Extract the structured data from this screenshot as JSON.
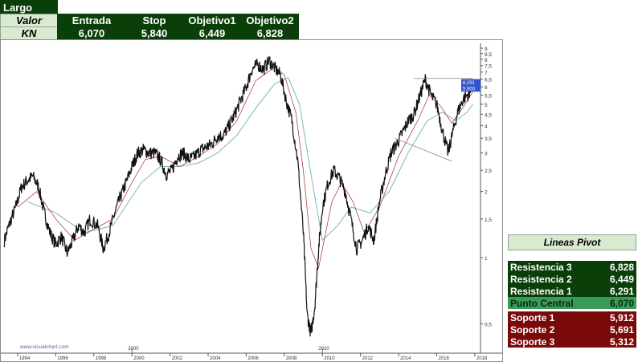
{
  "trade": {
    "direction": "Largo",
    "header": {
      "label": "Valor",
      "cols": [
        "Entrada",
        "Stop",
        "Objetivo1",
        "Objetivo2"
      ]
    },
    "row": {
      "ticker": "KN",
      "values": [
        "6,070",
        "5,840",
        "6,449",
        "6,828"
      ]
    }
  },
  "pivot": {
    "title": "Lineas Pivot",
    "rows": [
      {
        "label": "Resistencia 3",
        "value": "6,828",
        "color": "#0a3f0a"
      },
      {
        "label": "Resistencia 2",
        "value": "6,449",
        "color": "#0a3f0a"
      },
      {
        "label": "Resistencia 1",
        "value": "6,291",
        "color": "#0a3f0a"
      },
      {
        "label": "Punto Central",
        "value": "6,070",
        "color": "#3a9a5a"
      },
      {
        "label": "Soporte 1",
        "value": "5,912",
        "color": "#7a0a0a"
      },
      {
        "label": "Soporte 2",
        "value": "5,691",
        "color": "#7a0a0a"
      },
      {
        "label": "Soporte 3",
        "value": "5,312",
        "color": "#7a0a0a"
      }
    ]
  },
  "chart_data": {
    "type": "line",
    "scale": "log",
    "watermark": "www.visualchart.com",
    "ylim": [
      0.38,
      9
    ],
    "xlim": [
      1993.2,
      2018.3
    ],
    "y_ticks": [
      "9",
      "8,5",
      "8",
      "7,5",
      "7",
      "6,5",
      "6",
      "5,5",
      "5",
      "4,5",
      "4",
      "3,5",
      "3",
      "2,5",
      "2",
      "1,5",
      "1",
      "0,5"
    ],
    "y_tick_values": [
      9,
      8.5,
      8,
      7.5,
      7,
      6.5,
      6,
      5.5,
      5,
      4.5,
      4,
      3.5,
      3,
      2.5,
      2,
      1.5,
      1,
      0.5
    ],
    "x_ticks": [
      "1994",
      "1996",
      "1998",
      "2000",
      "2002",
      "2004",
      "2006",
      "2008",
      "2010",
      "2012",
      "2014",
      "2016",
      "2018"
    ],
    "x_tick_values": [
      1994,
      1996,
      1998,
      2000,
      2002,
      2004,
      2006,
      2008,
      2010,
      2012,
      2014,
      2016,
      2018
    ],
    "x_upper_labels": [
      {
        "text": "2000",
        "x": 2000
      },
      {
        "text": "2010",
        "x": 2010
      }
    ],
    "price_tags": [
      {
        "text": "6,291",
        "y": 6.29
      },
      {
        "text": "5,900",
        "y": 5.9
      }
    ],
    "series": [
      {
        "values": [
          [
            1993.3,
            1.2
          ],
          [
            1993.6,
            1.45
          ],
          [
            1993.9,
            1.7
          ],
          [
            1994.2,
            2.1
          ],
          [
            1994.5,
            2.25
          ],
          [
            1994.8,
            2.35
          ],
          [
            1995.1,
            2.1
          ],
          [
            1995.4,
            1.6
          ],
          [
            1995.7,
            1.3
          ],
          [
            1996.0,
            1.15
          ],
          [
            1996.3,
            1.25
          ],
          [
            1996.6,
            1.05
          ],
          [
            1996.9,
            1.2
          ],
          [
            1997.2,
            1.4
          ],
          [
            1997.5,
            1.3
          ],
          [
            1997.8,
            1.5
          ],
          [
            1998.2,
            1.4
          ],
          [
            1998.5,
            1.1
          ],
          [
            1998.8,
            1.3
          ],
          [
            1999.1,
            1.6
          ],
          [
            1999.4,
            1.9
          ],
          [
            1999.7,
            2.2
          ],
          [
            2000.0,
            2.6
          ],
          [
            2000.3,
            3.0
          ],
          [
            2000.6,
            3.1
          ],
          [
            2000.9,
            3.0
          ],
          [
            2001.2,
            3.0
          ],
          [
            2001.5,
            2.8
          ],
          [
            2001.8,
            2.4
          ],
          [
            2002.1,
            2.5
          ],
          [
            2002.4,
            2.9
          ],
          [
            2002.7,
            3.0
          ],
          [
            2003.0,
            2.8
          ],
          [
            2003.3,
            2.9
          ],
          [
            2003.6,
            3.1
          ],
          [
            2003.9,
            3.2
          ],
          [
            2004.2,
            3.3
          ],
          [
            2004.5,
            3.6
          ],
          [
            2004.8,
            3.6
          ],
          [
            2005.1,
            4.0
          ],
          [
            2005.4,
            4.5
          ],
          [
            2005.7,
            5.2
          ],
          [
            2006.0,
            6.0
          ],
          [
            2006.3,
            7.2
          ],
          [
            2006.6,
            7.6
          ],
          [
            2006.9,
            7.2
          ],
          [
            2007.2,
            7.9
          ],
          [
            2007.5,
            7.3
          ],
          [
            2007.8,
            6.8
          ],
          [
            2008.1,
            5.2
          ],
          [
            2008.4,
            4.2
          ],
          [
            2008.7,
            2.8
          ],
          [
            2009.0,
            1.3
          ],
          [
            2009.2,
            0.55
          ],
          [
            2009.4,
            0.45
          ],
          [
            2009.6,
            0.6
          ],
          [
            2009.8,
            1.1
          ],
          [
            2010.0,
            1.7
          ],
          [
            2010.3,
            2.2
          ],
          [
            2010.6,
            2.5
          ],
          [
            2010.9,
            2.3
          ],
          [
            2011.2,
            2.0
          ],
          [
            2011.5,
            1.5
          ],
          [
            2011.8,
            1.1
          ],
          [
            2012.1,
            1.2
          ],
          [
            2012.4,
            1.4
          ],
          [
            2012.7,
            1.2
          ],
          [
            2013.0,
            1.8
          ],
          [
            2013.3,
            2.4
          ],
          [
            2013.6,
            3.0
          ],
          [
            2013.9,
            3.3
          ],
          [
            2014.2,
            3.7
          ],
          [
            2014.5,
            4.2
          ],
          [
            2014.8,
            4.5
          ],
          [
            2015.1,
            5.4
          ],
          [
            2015.4,
            6.5
          ],
          [
            2015.7,
            5.5
          ],
          [
            2016.0,
            5.0
          ],
          [
            2016.3,
            3.8
          ],
          [
            2016.6,
            3.0
          ],
          [
            2016.8,
            3.6
          ],
          [
            2017.1,
            4.6
          ],
          [
            2017.4,
            5.3
          ],
          [
            2017.7,
            5.6
          ],
          [
            2017.8,
            6.1
          ],
          [
            2017.9,
            6.2
          ]
        ]
      }
    ],
    "ma_fast": [
      [
        1994.0,
        1.7
      ],
      [
        1995.0,
        2.0
      ],
      [
        1996.0,
        1.5
      ],
      [
        1997.0,
        1.2
      ],
      [
        1998.0,
        1.35
      ],
      [
        1999.0,
        1.5
      ],
      [
        2000.0,
        2.2
      ],
      [
        2000.7,
        2.8
      ],
      [
        2001.5,
        2.9
      ],
      [
        2002.5,
        2.6
      ],
      [
        2003.5,
        2.9
      ],
      [
        2004.5,
        3.3
      ],
      [
        2005.5,
        4.2
      ],
      [
        2006.5,
        6.4
      ],
      [
        2007.5,
        7.4
      ],
      [
        2008.0,
        6.8
      ],
      [
        2008.6,
        4.6
      ],
      [
        2009.0,
        2.5
      ],
      [
        2009.4,
        1.1
      ],
      [
        2009.8,
        0.9
      ],
      [
        2010.5,
        1.8
      ],
      [
        2011.0,
        2.2
      ],
      [
        2011.6,
        1.8
      ],
      [
        2012.2,
        1.3
      ],
      [
        2013.0,
        1.7
      ],
      [
        2014.0,
        2.9
      ],
      [
        2015.0,
        4.2
      ],
      [
        2015.6,
        5.5
      ],
      [
        2016.2,
        4.9
      ],
      [
        2016.8,
        4.1
      ],
      [
        2017.5,
        5.0
      ],
      [
        2017.9,
        5.7
      ]
    ],
    "ma_slow": [
      [
        1994.5,
        1.8
      ],
      [
        1996.0,
        1.6
      ],
      [
        1997.5,
        1.3
      ],
      [
        1999.0,
        1.4
      ],
      [
        2000.5,
        2.2
      ],
      [
        2001.5,
        2.6
      ],
      [
        2002.5,
        2.6
      ],
      [
        2003.5,
        2.7
      ],
      [
        2004.5,
        3.0
      ],
      [
        2005.5,
        3.6
      ],
      [
        2006.5,
        4.8
      ],
      [
        2007.5,
        6.2
      ],
      [
        2008.2,
        6.6
      ],
      [
        2008.8,
        5.0
      ],
      [
        2009.4,
        2.4
      ],
      [
        2010.0,
        1.2
      ],
      [
        2010.8,
        1.4
      ],
      [
        2011.5,
        1.7
      ],
      [
        2012.5,
        1.6
      ],
      [
        2013.5,
        2.0
      ],
      [
        2014.5,
        3.0
      ],
      [
        2015.5,
        4.2
      ],
      [
        2016.3,
        4.6
      ],
      [
        2017.0,
        4.2
      ],
      [
        2017.6,
        4.6
      ],
      [
        2017.9,
        5.0
      ]
    ],
    "trendlines": [
      {
        "from": [
          2014.8,
          6.55
        ],
        "to": [
          2016.8,
          6.55
        ]
      },
      {
        "from": [
          2016.8,
          6.55
        ],
        "to": [
          2017.9,
          6.55
        ]
      },
      {
        "from": [
          2013.8,
          3.5
        ],
        "to": [
          2016.8,
          2.75
        ]
      },
      {
        "from": [
          2017.3,
          5.9
        ],
        "to": [
          2018.0,
          5.9
        ]
      }
    ]
  }
}
